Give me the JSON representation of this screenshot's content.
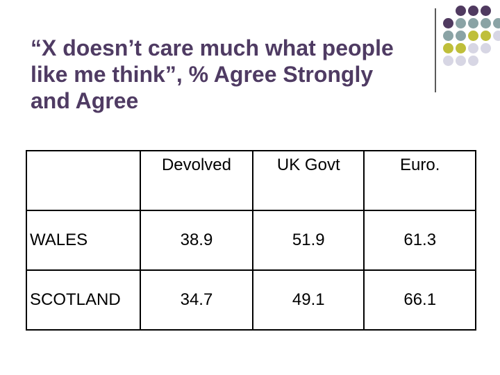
{
  "slide": {
    "title_lines": [
      "“X doesn’t care much what people",
      "like me think”, % Agree Strongly",
      "and Agree"
    ]
  },
  "colors": {
    "title": "#4f3b63",
    "dot_purple": "#503a60",
    "dot_teal": "#8aa3a5",
    "dot_olive": "#bfbf3a",
    "dot_lavender": "#d7d6e4"
  },
  "decoration": {
    "dot_grid_rows": [
      [
        "purple",
        "purple",
        "purple"
      ],
      [
        "purple",
        "teal",
        "teal",
        "teal",
        "teal"
      ],
      [
        "teal",
        "teal",
        "olive",
        "olive",
        "lavender"
      ],
      [
        "olive",
        "olive",
        "lavender",
        "lavender"
      ],
      [
        "lavender",
        "lavender",
        "lavender"
      ]
    ]
  },
  "table": {
    "columns": [
      "",
      "Devolved",
      "UK Govt",
      "Euro."
    ],
    "rows": [
      {
        "label": "WALES",
        "values": [
          "38.9",
          "51.9",
          "61.3"
        ]
      },
      {
        "label": "SCOTLAND",
        "values": [
          "34.7",
          "49.1",
          "66.1"
        ]
      }
    ]
  }
}
